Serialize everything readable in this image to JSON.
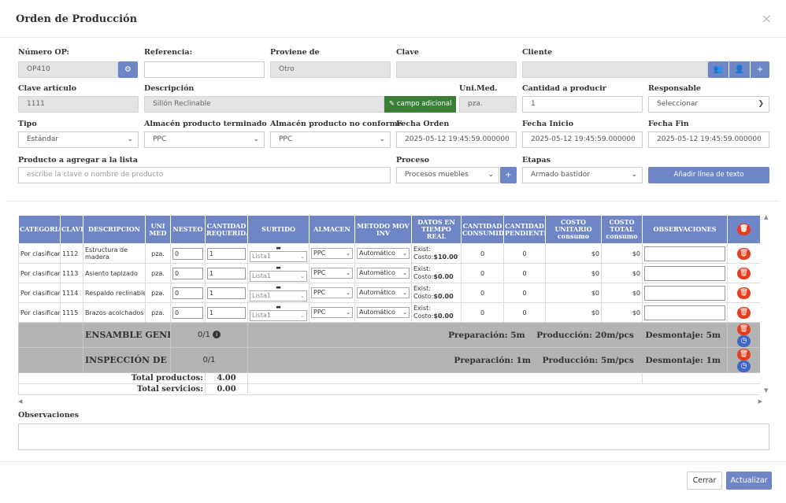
{
  "modal": {
    "title": "Orden de Producción",
    "close": "×"
  },
  "form": {
    "numero_op": {
      "label": "Número OP:",
      "value": "OP410"
    },
    "referencia": {
      "label": "Referencia:",
      "value": ""
    },
    "proviene": {
      "label": "Proviene de",
      "value": "Otro"
    },
    "clave": {
      "label": "Clave",
      "value": ""
    },
    "cliente": {
      "label": "Cliente",
      "value": ""
    },
    "clave_articulo": {
      "label": "Clave artículo",
      "value": "1111"
    },
    "descripcion": {
      "label": "Descripción",
      "value": "Sillón Reclinable",
      "extra_button": "campo adicional"
    },
    "uni_med": {
      "label": "Uni.Med.",
      "value": "pza."
    },
    "cantidad": {
      "label": "Cantidad a producir",
      "value": "1"
    },
    "responsable": {
      "label": "Responsable",
      "value": "Seleccionar"
    },
    "tipo": {
      "label": "Tipo",
      "value": "Estándar"
    },
    "almacen_pt": {
      "label": "Almacén producto terminado",
      "value": "PPC"
    },
    "almacen_pnc": {
      "label": "Almacén producto no conforme",
      "value": "PPC"
    },
    "fecha_orden": {
      "label": "Fecha Orden",
      "value": "2025-05-12 19:45:59.000000"
    },
    "fecha_inicio": {
      "label": "Fecha Inicio",
      "value": "2025-05-12 19:45:59.000000"
    },
    "fecha_fin": {
      "label": "Fecha Fin",
      "value": "2025-05-12 19:45:59.000000"
    },
    "producto_agregar": {
      "label": "Producto a agregar a la lista",
      "placeholder": "escribe la clave o nombre de producto"
    },
    "proceso": {
      "label": "Proceso",
      "value": "Procesos muebles"
    },
    "etapas": {
      "label": "Etapas",
      "value": "Armado bastidor"
    },
    "add_text_line": "Añadir línea de texto"
  },
  "table": {
    "headers": {
      "categoria": "CATEGORIA",
      "clave": "CLAVE",
      "descripcion": "DESCRIPCION",
      "unimed_1": "UNI",
      "unimed_2": "MED",
      "nesteo": "NESTEO",
      "cant_req_1": "CANTIDAD",
      "cant_req_2": "REQUERIDA",
      "surtido": "SURTIDO",
      "almacen": "ALMACEN",
      "metodo_1": "METODO MOV",
      "metodo_2": "INV",
      "datos_1": "DATOS EN",
      "datos_2": "TIEMPO",
      "datos_3": "REAL",
      "cant_cons_1": "CANTIDAD",
      "cant_cons_2": "CONSUMIDA",
      "cant_pend_1": "CANTIDAD",
      "cant_pend_2": "PENDIENTE",
      "costo_u_1": "COSTO",
      "costo_u_2": "UNITARIO",
      "costo_u_3": "consumo",
      "costo_t_1": "COSTO",
      "costo_t_2": "TOTAL",
      "costo_t_3": "consumo",
      "observaciones": "OBSERVACIONES"
    },
    "rows": [
      {
        "categoria": "Por clasificar",
        "clave": "1112",
        "descripcion_1": "Estructura de",
        "descripcion_2": "madera",
        "unimed": "pza.",
        "nesteo": "0",
        "cantidad": "1",
        "surtido": "Lista1",
        "almacen": "PPC",
        "metodo": "Automático",
        "exist": "Exist:",
        "costo_lbl": "Costo:",
        "costo": "$10.00",
        "consumida": "0",
        "pendiente": "0",
        "costo_unit": "$0",
        "costo_total": "$0"
      },
      {
        "categoria": "Por clasificar",
        "clave": "1113",
        "descripcion_1": "Asiento tapizado",
        "descripcion_2": "",
        "unimed": "pza.",
        "nesteo": "0",
        "cantidad": "1",
        "surtido": "Lista1",
        "almacen": "PPC",
        "metodo": "Automático",
        "exist": "Exist:",
        "costo_lbl": "Costo:",
        "costo": "$0.00",
        "consumida": "0",
        "pendiente": "0",
        "costo_unit": "$0",
        "costo_total": "$0"
      },
      {
        "categoria": "Por clasificar",
        "clave": "1114",
        "descripcion_1": "Respaldo reclinable",
        "descripcion_2": "",
        "unimed": "pza.",
        "nesteo": "0",
        "cantidad": "1",
        "surtido": "Lista1",
        "almacen": "PPC",
        "metodo": "Automático",
        "exist": "Exist:",
        "costo_lbl": "Costo:",
        "costo": "$0.00",
        "consumida": "0",
        "pendiente": "0",
        "costo_unit": "$0",
        "costo_total": "$0"
      },
      {
        "categoria": "Por clasificar",
        "clave": "1115",
        "descripcion_1": "Brazos acolchados",
        "descripcion_2": "",
        "unimed": "pza.",
        "nesteo": "0",
        "cantidad": "1",
        "surtido": "Lista1",
        "almacen": "PPC",
        "metodo": "Automático",
        "exist": "Exist:",
        "costo_lbl": "Costo:",
        "costo": "$0.00",
        "consumida": "0",
        "pendiente": "0",
        "costo_unit": "$0",
        "costo_total": "$0"
      }
    ],
    "groups": [
      {
        "name": "ENSAMBLE GENERAL",
        "count": "0/1",
        "details": "Preparación: 5m    Producción: 20m/pcs    Desmontaje: 5m"
      },
      {
        "name": "INSPECCIÓN DE CALIDAD",
        "count": "0/1",
        "details": "Preparación: 1m    Producción: 5m/pcs    Desmontaje: 1m"
      }
    ],
    "totals": {
      "productos_label": "Total productos:",
      "productos": "4.00",
      "servicios_label": "Total servicios:",
      "servicios": "0.00"
    }
  },
  "observaciones": {
    "label": "Observaciones",
    "value": ""
  },
  "footer": {
    "cerrar": "Cerrar",
    "actualizar": "Actualizar"
  }
}
